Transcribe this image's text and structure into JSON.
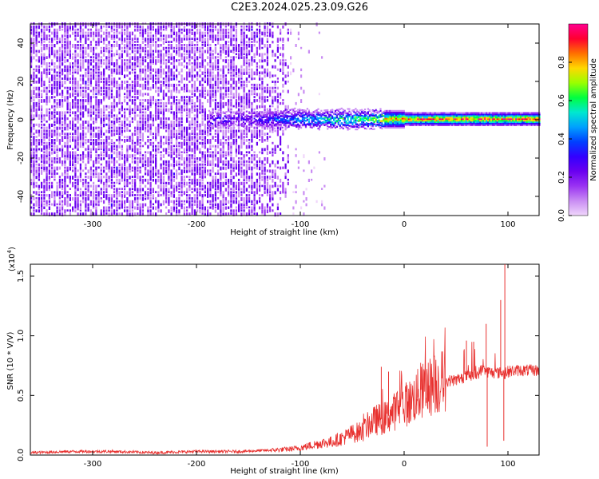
{
  "title": "C2E3.2024.025.23.09.G26",
  "chart_data": [
    {
      "type": "heatmap",
      "xlabel": "Height of straight line (km)",
      "ylabel": "Frequency (Hz)",
      "xlim": [
        -360,
        130
      ],
      "ylim": [
        -50,
        50
      ],
      "x_ticks": [
        -300,
        -200,
        -100,
        0,
        100
      ],
      "y_ticks": [
        -40,
        -20,
        0,
        20,
        40
      ],
      "colorbar": {
        "label": "Normalized spectral amplitude",
        "range": [
          0,
          1
        ],
        "ticks": [
          "0.0",
          "0.2",
          "0.4",
          "0.6",
          "0.8"
        ],
        "tick_values": [
          0.0,
          0.2,
          0.4,
          0.6,
          0.8
        ],
        "colors": [
          "#f0d6fb",
          "#c98cf3",
          "#9a33f2",
          "#6a00f0",
          "#3300ff",
          "#0040ff",
          "#00a0ff",
          "#00e8d0",
          "#00ff40",
          "#9aff00",
          "#ffd800",
          "#ff7000",
          "#ff0030",
          "#ff0090"
        ]
      },
      "features": {
        "noise_region_x": [
          -360,
          -110
        ],
        "sparse_region_x": [
          -110,
          -70
        ],
        "signal_x_start": -190,
        "signal_freq_hz": 0
      }
    },
    {
      "type": "line",
      "xlabel": "Height of straight line (km)",
      "ylabel": "SNR (10 * V/V)",
      "y_multiplier": "(x10",
      "y_multiplier_exp": "4",
      "xlim": [
        -360,
        130
      ],
      "ylim": [
        0,
        1.6
      ],
      "x_ticks": [
        -300,
        -200,
        -100,
        0,
        100
      ],
      "y_ticks": [
        "0.0",
        "0.5",
        "1.0",
        "1.5"
      ],
      "y_tick_values": [
        0.0,
        0.5,
        1.0,
        1.5
      ],
      "line_color": "#e8312f",
      "series": [
        {
          "x": [
            -360,
            -320,
            -280,
            -240,
            -200,
            -160,
            -130,
            -110,
            -100,
            -90,
            -80,
            -70,
            -60,
            -50,
            -40,
            -35,
            -30,
            -25,
            -20,
            -15,
            -10,
            -5,
            0,
            5,
            10,
            20,
            30,
            40,
            50,
            60,
            70,
            75,
            80,
            85,
            90,
            95,
            97,
            100,
            110,
            120,
            130
          ],
          "values": [
            0.02,
            0.03,
            0.03,
            0.02,
            0.03,
            0.03,
            0.04,
            0.05,
            0.06,
            0.08,
            0.1,
            0.11,
            0.14,
            0.18,
            0.2,
            0.25,
            0.28,
            0.3,
            0.3,
            0.33,
            0.36,
            0.4,
            0.42,
            0.44,
            0.48,
            0.55,
            0.6,
            0.62,
            0.63,
            0.66,
            0.67,
            0.72,
            0.7,
            0.69,
            0.69,
            0.69,
            0.68,
            0.7,
            0.71,
            0.71,
            0.71
          ]
        }
      ],
      "spikes": [
        {
          "x": -22,
          "y": 0.74
        },
        {
          "x": -15,
          "y": 0.7
        },
        {
          "x": 60,
          "y": 0.96
        },
        {
          "x": 67,
          "y": 0.95
        },
        {
          "x": 79,
          "y": 1.1
        },
        {
          "x": 80,
          "y": 0.07
        },
        {
          "x": 93,
          "y": 1.3
        },
        {
          "x": 97,
          "y": 1.6
        },
        {
          "x": 96,
          "y": 0.12
        }
      ]
    }
  ]
}
